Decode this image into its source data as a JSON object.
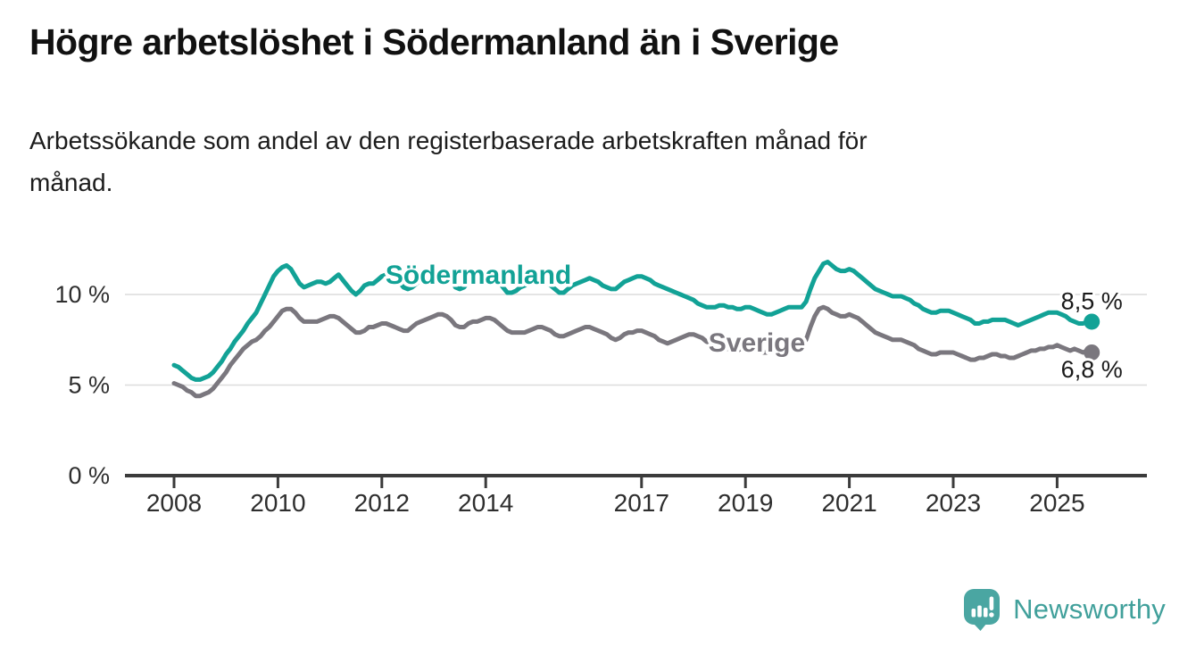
{
  "header": {
    "title": "Högre arbetslöshet i Södermanland än i Sverige",
    "subtitle_line1": "Arbetssökande som andel av den registerbaserade arbetskraften månad för",
    "subtitle_line2": "månad."
  },
  "footer": {
    "brand": "Newsworthy"
  },
  "colors": {
    "accent_teal": "#12a296",
    "series_gray": "#7a777e",
    "logo_bubble_teal": "#4aa6a2",
    "wordmark_teal": "#41a09b",
    "title_text": "#111111",
    "axis_text": "#2e2e2e"
  },
  "chart_data": {
    "type": "line",
    "title": "Högre arbetslöshet i Södermanland än i Sverige",
    "subtitle": "Arbetssökande som andel av den registerbaserade arbetskraften månad för månad.",
    "unit": "%",
    "x_start_year": 2008,
    "points_per_year": 12,
    "x_axis": {
      "ticks": [
        2008,
        2010,
        2012,
        2014,
        2017,
        2019,
        2021,
        2023,
        2025
      ]
    },
    "y_axis": {
      "ticks": [
        0,
        5,
        10
      ],
      "tick_labels": [
        "0 %",
        "5 %",
        "10 %"
      ],
      "range": [
        0,
        12.5
      ]
    },
    "grid_color": "#dcdcdc",
    "axis_color": "#3b3b3b",
    "text_color": "#1a1a1a",
    "legend_position": "inline-labels",
    "series": [
      {
        "name": "Sverige",
        "color": "#7a777e",
        "end_label": "6,8 %",
        "end_label_position": "below",
        "last_value": 6.8,
        "label": {
          "text": "Sverige",
          "year": 2019.22,
          "value": 7.39
        },
        "values": [
          5.1,
          5.0,
          4.9,
          4.7,
          4.6,
          4.4,
          4.4,
          4.5,
          4.6,
          4.8,
          5.1,
          5.4,
          5.7,
          6.1,
          6.4,
          6.7,
          7.0,
          7.2,
          7.4,
          7.5,
          7.7,
          8.0,
          8.2,
          8.5,
          8.8,
          9.1,
          9.2,
          9.2,
          9.0,
          8.7,
          8.5,
          8.5,
          8.5,
          8.5,
          8.6,
          8.7,
          8.8,
          8.8,
          8.7,
          8.5,
          8.3,
          8.1,
          7.9,
          7.9,
          8.0,
          8.2,
          8.2,
          8.3,
          8.4,
          8.4,
          8.3,
          8.2,
          8.1,
          8.0,
          8.0,
          8.2,
          8.4,
          8.5,
          8.6,
          8.7,
          8.8,
          8.9,
          8.9,
          8.8,
          8.6,
          8.3,
          8.2,
          8.2,
          8.4,
          8.5,
          8.5,
          8.6,
          8.7,
          8.7,
          8.6,
          8.4,
          8.2,
          8.0,
          7.9,
          7.9,
          7.9,
          7.9,
          8.0,
          8.1,
          8.2,
          8.2,
          8.1,
          8.0,
          7.8,
          7.7,
          7.7,
          7.8,
          7.9,
          8.0,
          8.1,
          8.2,
          8.2,
          8.1,
          8.0,
          7.9,
          7.8,
          7.6,
          7.5,
          7.6,
          7.8,
          7.9,
          7.9,
          8.0,
          8.0,
          7.9,
          7.8,
          7.7,
          7.5,
          7.4,
          7.3,
          7.4,
          7.5,
          7.6,
          7.7,
          7.8,
          7.8,
          7.7,
          7.6,
          7.4,
          7.3,
          7.2,
          7.1,
          7.0,
          7.0,
          6.9,
          6.9,
          7.0,
          7.0,
          7.0,
          6.9,
          6.9,
          6.8,
          6.8,
          6.9,
          6.9,
          7.0,
          7.1,
          7.1,
          7.2,
          7.2,
          7.2,
          7.5,
          8.2,
          8.8,
          9.2,
          9.3,
          9.2,
          9.0,
          8.9,
          8.8,
          8.8,
          8.9,
          8.8,
          8.7,
          8.5,
          8.3,
          8.1,
          7.9,
          7.8,
          7.7,
          7.6,
          7.5,
          7.5,
          7.5,
          7.4,
          7.3,
          7.2,
          7.0,
          6.9,
          6.8,
          6.7,
          6.7,
          6.8,
          6.8,
          6.8,
          6.8,
          6.7,
          6.6,
          6.5,
          6.4,
          6.4,
          6.5,
          6.5,
          6.6,
          6.7,
          6.7,
          6.6,
          6.6,
          6.5,
          6.5,
          6.6,
          6.7,
          6.8,
          6.9,
          6.9,
          7.0,
          7.0,
          7.1,
          7.1,
          7.2,
          7.1,
          7.0,
          6.9,
          7.0,
          6.9,
          6.8,
          6.9,
          6.8
        ]
      },
      {
        "name": "Södermanland",
        "color": "#12a296",
        "end_label": "8,5 %",
        "end_label_position": "above",
        "last_value": 8.5,
        "label": {
          "text": "Södermanland",
          "year": 2013.86,
          "value": 11.13
        },
        "values": [
          6.1,
          6.0,
          5.8,
          5.6,
          5.4,
          5.3,
          5.3,
          5.4,
          5.5,
          5.7,
          6.0,
          6.3,
          6.7,
          7.0,
          7.4,
          7.7,
          8.0,
          8.4,
          8.7,
          9.0,
          9.5,
          10.0,
          10.5,
          11.0,
          11.3,
          11.5,
          11.6,
          11.4,
          11.0,
          10.6,
          10.4,
          10.5,
          10.6,
          10.7,
          10.7,
          10.6,
          10.7,
          10.9,
          11.1,
          10.8,
          10.5,
          10.2,
          10.0,
          10.2,
          10.5,
          10.6,
          10.6,
          10.8,
          11.0,
          11.1,
          11.1,
          10.9,
          10.7,
          10.4,
          10.3,
          10.4,
          10.6,
          10.8,
          10.9,
          11.0,
          11.2,
          11.3,
          11.3,
          11.1,
          10.8,
          10.4,
          10.3,
          10.4,
          10.7,
          10.8,
          10.9,
          11.0,
          11.1,
          11.1,
          11.0,
          10.7,
          10.4,
          10.1,
          10.1,
          10.2,
          10.4,
          10.5,
          10.6,
          10.7,
          10.8,
          10.8,
          10.7,
          10.5,
          10.3,
          10.1,
          10.1,
          10.3,
          10.5,
          10.6,
          10.7,
          10.8,
          10.9,
          10.8,
          10.7,
          10.5,
          10.4,
          10.3,
          10.3,
          10.5,
          10.7,
          10.8,
          10.9,
          11.0,
          11.0,
          10.9,
          10.8,
          10.6,
          10.5,
          10.4,
          10.3,
          10.2,
          10.1,
          10.0,
          9.9,
          9.8,
          9.7,
          9.5,
          9.4,
          9.3,
          9.3,
          9.3,
          9.4,
          9.4,
          9.3,
          9.3,
          9.2,
          9.2,
          9.3,
          9.3,
          9.2,
          9.1,
          9.0,
          8.9,
          8.9,
          9.0,
          9.1,
          9.2,
          9.3,
          9.3,
          9.3,
          9.3,
          9.6,
          10.3,
          10.9,
          11.3,
          11.7,
          11.8,
          11.6,
          11.4,
          11.3,
          11.3,
          11.4,
          11.3,
          11.1,
          10.9,
          10.7,
          10.5,
          10.3,
          10.2,
          10.1,
          10.0,
          9.9,
          9.9,
          9.9,
          9.8,
          9.7,
          9.5,
          9.4,
          9.2,
          9.1,
          9.0,
          9.0,
          9.1,
          9.1,
          9.1,
          9.0,
          8.9,
          8.8,
          8.7,
          8.6,
          8.4,
          8.4,
          8.5,
          8.5,
          8.6,
          8.6,
          8.6,
          8.6,
          8.5,
          8.4,
          8.3,
          8.4,
          8.5,
          8.6,
          8.7,
          8.8,
          8.9,
          9.0,
          9.0,
          9.0,
          8.9,
          8.8,
          8.6,
          8.5,
          8.4,
          8.4,
          8.5,
          8.5
        ]
      }
    ]
  }
}
